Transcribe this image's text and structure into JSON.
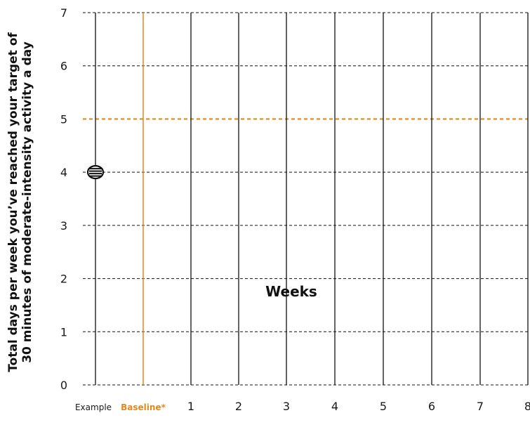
{
  "chart_data": {
    "type": "scatter",
    "title": "",
    "xlabel": "Weeks",
    "ylabel_lines": [
      "Total days per week you’ve reached your target of",
      "30 minutes of moderate-intensity activity a day"
    ],
    "categories": [
      "Example",
      "Baseline*",
      "1",
      "2",
      "3",
      "4",
      "5",
      "6",
      "7",
      "8"
    ],
    "highlight_category": "Baseline*",
    "yticks": [
      0,
      1,
      2,
      3,
      4,
      5,
      6,
      7
    ],
    "ylim": [
      0,
      7
    ],
    "grid": "dashed horizontal, solid vertical",
    "target_line": {
      "y": 5,
      "color": "#e08a1e"
    },
    "points": [
      {
        "category": "Example",
        "y": 4
      }
    ],
    "colors": {
      "accent": "#e08a1e",
      "ink": "#111111"
    }
  }
}
